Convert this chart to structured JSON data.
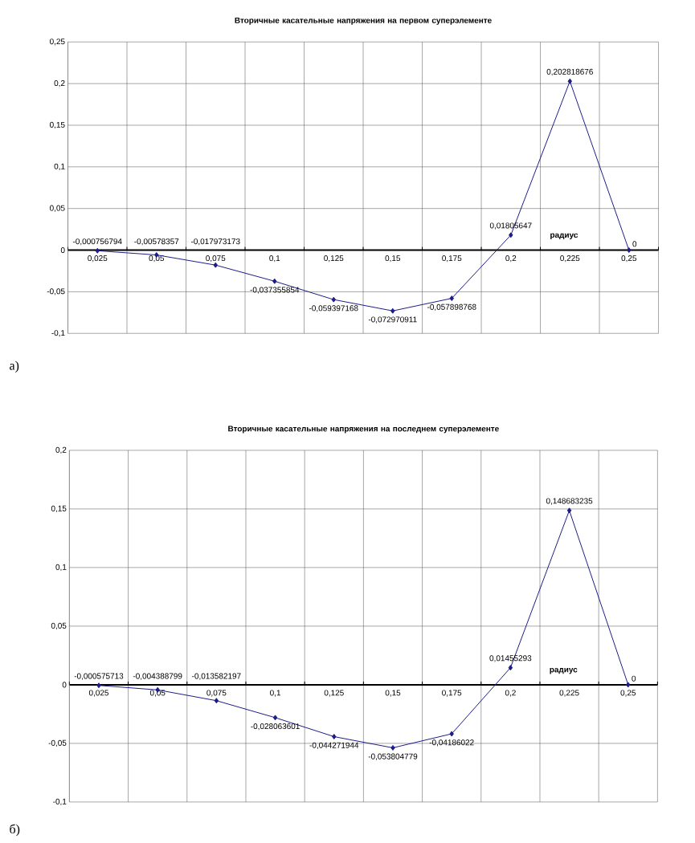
{
  "chart_data": [
    {
      "type": "line",
      "title": "Вторичные касательные напряжения на первом суперэлементе",
      "xlabel": "радиус",
      "categories": [
        "0,025",
        "0,05",
        "0,075",
        "0,1",
        "0,125",
        "0,15",
        "0,175",
        "0,2",
        "0,225",
        "0,25"
      ],
      "series": [
        {
          "color": "#1c1c8a",
          "values": [
            -0.000756794,
            -0.00578357,
            -0.017973173,
            -0.037355854,
            -0.059397168,
            -0.072970911,
            -0.057898768,
            0.01805647,
            0.202818676,
            0
          ],
          "value_labels": [
            "-0,000756794",
            "-0,00578357",
            "-0,017973173",
            "-0,037355854",
            "-0,059397168",
            "-0,072970911",
            "-0,057898768",
            "0,01805647",
            "0,202818676",
            "0"
          ]
        }
      ],
      "ylim": [
        -0.1,
        0.25
      ],
      "yticks": [
        {
          "value": -0.1,
          "label": "-0,1"
        },
        {
          "value": -0.05,
          "label": "-0,05"
        },
        0,
        {
          "value": 0.05,
          "label": "0,05"
        },
        {
          "value": 0.1,
          "label": "0,1"
        },
        {
          "value": 0.15,
          "label": "0,15"
        },
        {
          "value": 0.2,
          "label": "0,2"
        },
        {
          "value": 0.25,
          "label": "0,25"
        }
      ],
      "grid": true,
      "marker": "diamond",
      "annotations": [
        "а)"
      ]
    },
    {
      "type": "line",
      "title": "Вторичные касательные напряжения на последнем суперэлементе",
      "xlabel": "радиус",
      "categories": [
        "0,025",
        "0,05",
        "0,075",
        "0,1",
        "0,125",
        "0,15",
        "0,175",
        "0,2",
        "0,225",
        "0,25"
      ],
      "series": [
        {
          "color": "#1c1c8a",
          "values": [
            -0.000575713,
            -0.004388799,
            -0.013582197,
            -0.028063601,
            -0.044271944,
            -0.053804779,
            -0.04186022,
            0.01455293,
            0.148683235,
            0
          ],
          "value_labels": [
            "-0,000575713",
            "-0,004388799",
            "-0,013582197",
            "-0,028063601",
            "-0,044271944",
            "-0,053804779",
            "-0,04186022",
            "0,01455293",
            "0,148683235",
            "0"
          ]
        }
      ],
      "ylim": [
        -0.1,
        0.2
      ],
      "yticks": [
        {
          "value": -0.1,
          "label": "-0,1"
        },
        {
          "value": -0.05,
          "label": "-0,05"
        },
        0,
        {
          "value": 0.05,
          "label": "0,05"
        },
        {
          "value": 0.1,
          "label": "0,1"
        },
        {
          "value": 0.15,
          "label": "0,15"
        },
        {
          "value": 0.2,
          "label": "0,2"
        }
      ],
      "grid": true,
      "marker": "diamond",
      "annotations": [
        "б)"
      ]
    }
  ]
}
